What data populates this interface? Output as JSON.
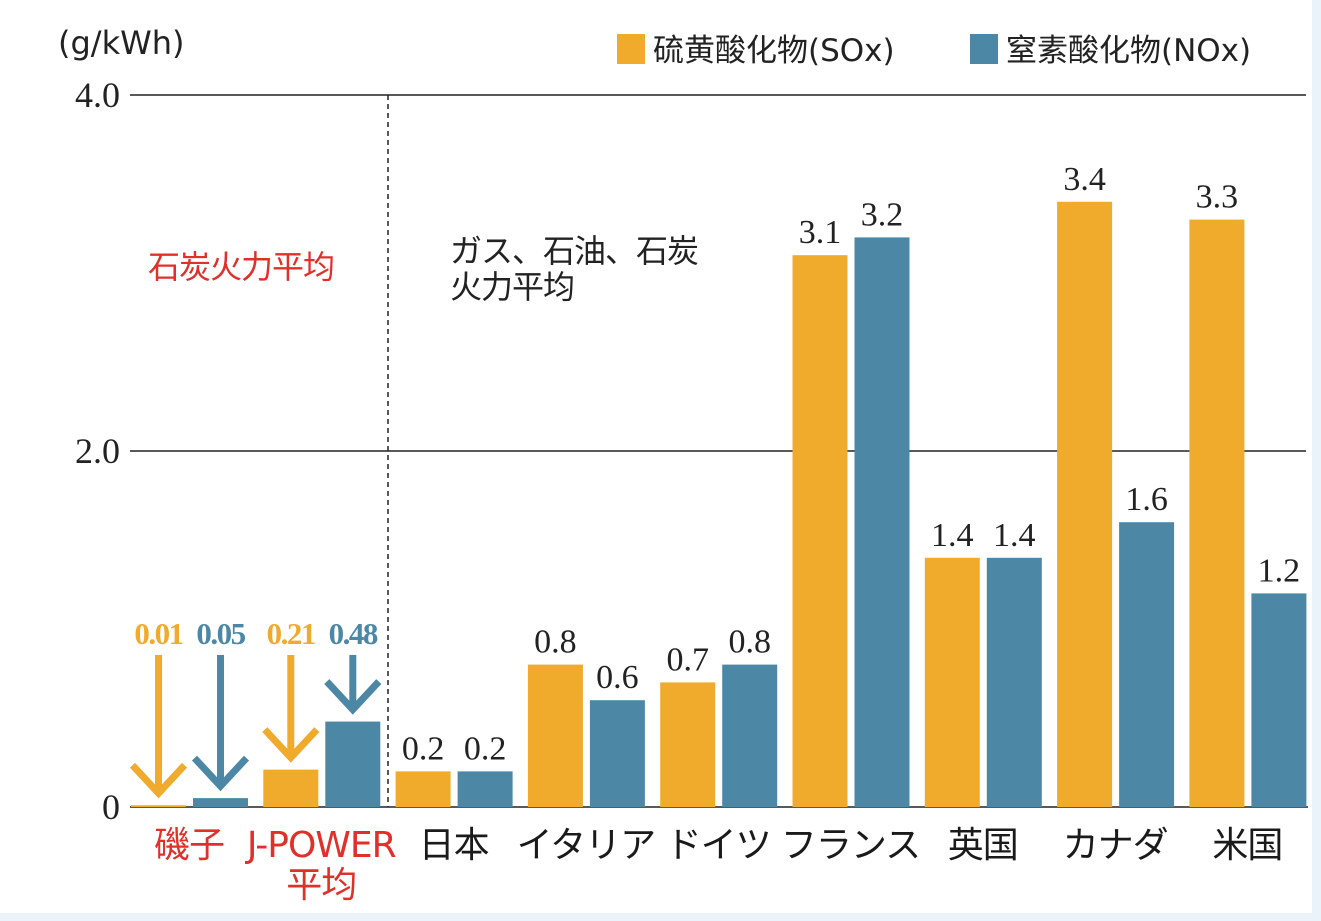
{
  "chart_data": {
    "type": "bar",
    "y_axis_label": "(g/kWh)",
    "categories": [
      "磯子",
      "J-POWER\n平均",
      "日本",
      "イタリア",
      "ドイツ",
      "フランス",
      "英国",
      "カナダ",
      "米国"
    ],
    "category_colors": [
      "#e0302a",
      "#e0302a",
      null,
      null,
      null,
      null,
      null,
      null,
      null
    ],
    "series": [
      {
        "name": "硫黄酸化物(SOx)",
        "color": "#f0aa2c",
        "values": [
          0.01,
          0.21,
          0.2,
          0.8,
          0.7,
          3.1,
          1.4,
          3.4,
          3.3
        ]
      },
      {
        "name": "窒素酸化物(NOx)",
        "color": "#4c88a6",
        "values": [
          0.05,
          0.48,
          0.2,
          0.6,
          0.8,
          3.2,
          1.4,
          1.6,
          1.2
        ]
      }
    ],
    "ylim": [
      0,
      4
    ],
    "yticks": [
      {
        "value": 0,
        "label": "0"
      },
      {
        "value": 2,
        "label": "2.0"
      },
      {
        "value": 4,
        "label": "4.0"
      }
    ],
    "grid": true,
    "annotations": [
      {
        "text": "石炭火力平均",
        "color": "#e0302a"
      },
      {
        "text": "ガス、石油、石炭\n火力平均",
        "color": "#222222"
      }
    ]
  }
}
